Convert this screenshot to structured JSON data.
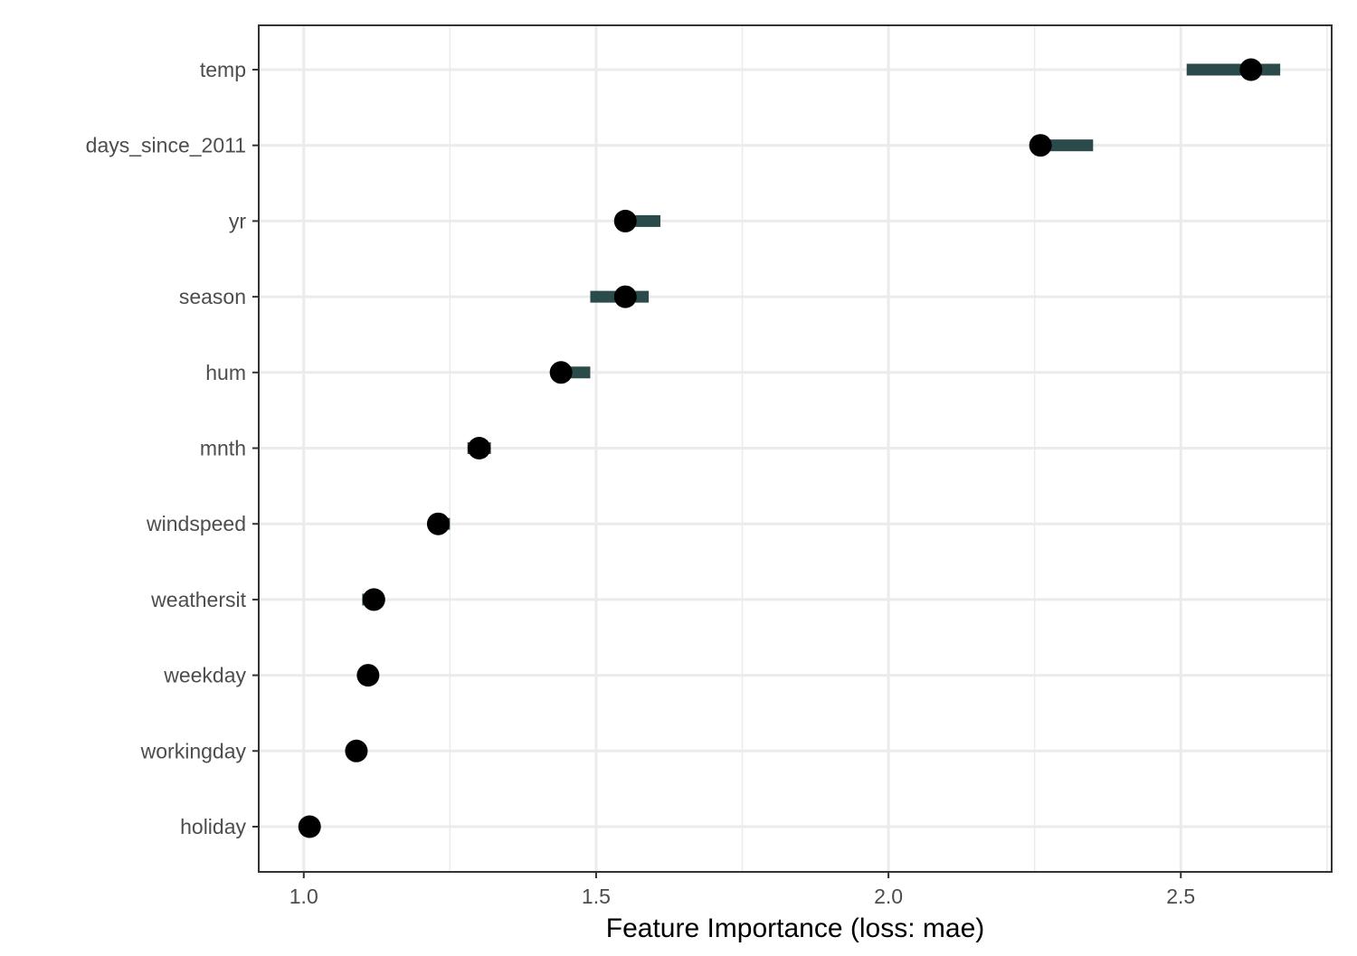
{
  "chart_data": {
    "type": "dot-interval",
    "title": "",
    "xlabel": "Feature Importance (loss: mae)",
    "ylabel": "",
    "xlim": [
      0.923,
      2.758
    ],
    "xticks": [
      1.0,
      1.5,
      2.0,
      2.5
    ],
    "xtick_labels": [
      "1.0",
      "1.5",
      "2.0",
      "2.5"
    ],
    "grid": true,
    "colors": {
      "point": "#000000",
      "interval": "#2b4a4a",
      "grid": "#ebebeb",
      "frame": "#333333"
    },
    "features": [
      {
        "name": "temp",
        "importance": 2.62,
        "low": 2.51,
        "high": 2.67
      },
      {
        "name": "days_since_2011",
        "importance": 2.26,
        "low": 2.26,
        "high": 2.35
      },
      {
        "name": "yr",
        "importance": 1.55,
        "low": 1.55,
        "high": 1.61
      },
      {
        "name": "season",
        "importance": 1.55,
        "low": 1.49,
        "high": 1.59
      },
      {
        "name": "hum",
        "importance": 1.44,
        "low": 1.44,
        "high": 1.49
      },
      {
        "name": "mnth",
        "importance": 1.3,
        "low": 1.28,
        "high": 1.32
      },
      {
        "name": "windspeed",
        "importance": 1.23,
        "low": 1.23,
        "high": 1.25
      },
      {
        "name": "weathersit",
        "importance": 1.12,
        "low": 1.1,
        "high": 1.13
      },
      {
        "name": "weekday",
        "importance": 1.11,
        "low": 1.11,
        "high": 1.11
      },
      {
        "name": "workingday",
        "importance": 1.09,
        "low": 1.09,
        "high": 1.09
      },
      {
        "name": "holiday",
        "importance": 1.01,
        "low": 1.01,
        "high": 1.01
      }
    ]
  }
}
